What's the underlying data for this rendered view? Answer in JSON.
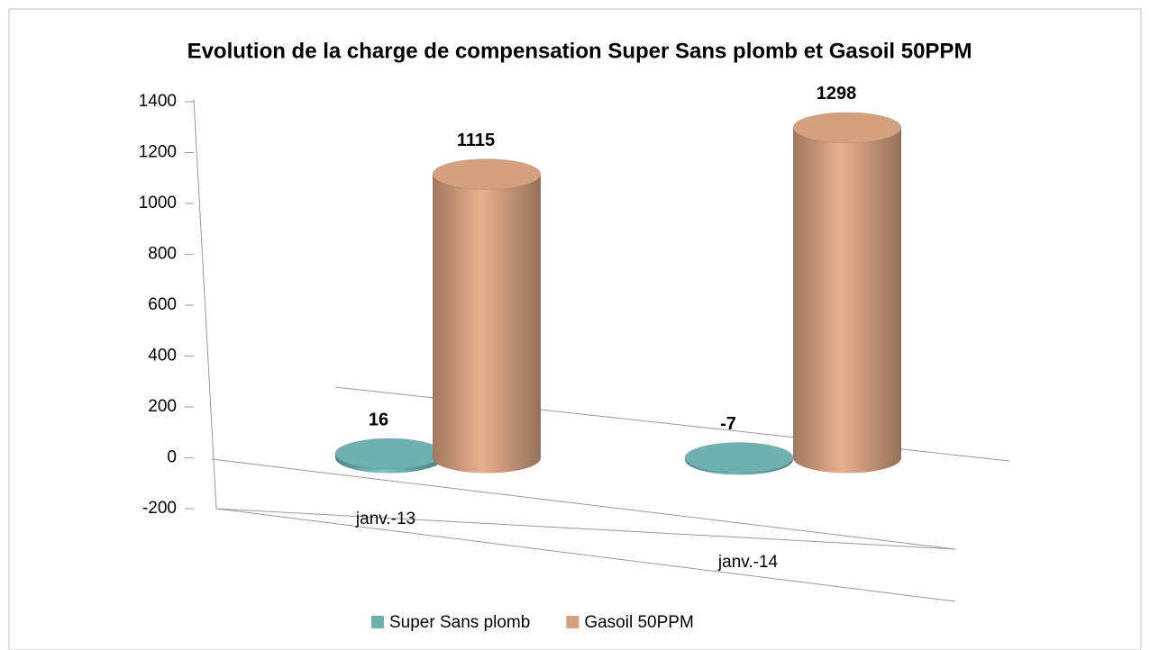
{
  "chart_data": {
    "type": "bar3d",
    "title": "Evolution de la charge de compensation Super Sans plomb et Gasoil 50PPM",
    "categories": [
      "janv.-13",
      "janv.-14"
    ],
    "series": [
      {
        "name": "Super Sans plomb",
        "color": "#6fb0b0",
        "values": [
          16,
          -7
        ]
      },
      {
        "name": "Gasoil 50PPM",
        "color": "#d4a07f",
        "values": [
          1115,
          1298
        ]
      }
    ],
    "ylim": [
      -200,
      1400
    ],
    "yticks": [
      -200,
      0,
      200,
      400,
      600,
      800,
      1000,
      1200,
      1400
    ],
    "grid": false,
    "legend": "bottom"
  }
}
